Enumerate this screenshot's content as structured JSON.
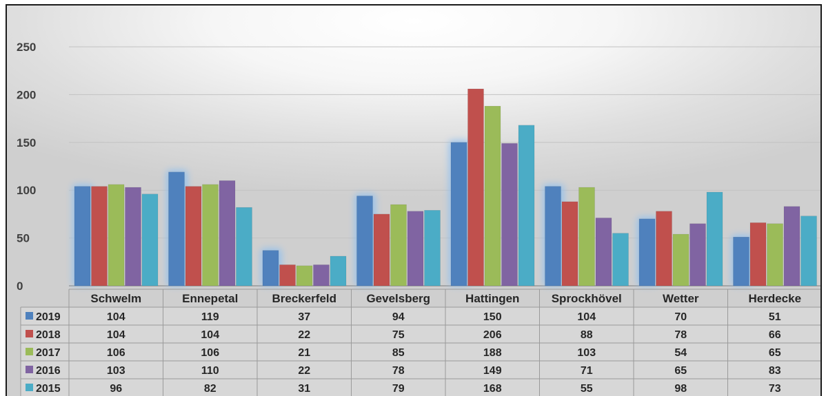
{
  "chart_data": {
    "type": "bar",
    "title": "",
    "xlabel": "",
    "ylabel": "",
    "ylim": [
      0,
      250
    ],
    "yticks": [
      0,
      50,
      100,
      150,
      200,
      250
    ],
    "grid": true,
    "legend": "data-table",
    "categories": [
      "Schwelm",
      "Ennepetal",
      "Breckerfeld",
      "Gevelsberg",
      "Hattingen",
      "Sprockhövel",
      "Wetter",
      "Herdecke"
    ],
    "series": [
      {
        "name": "2019",
        "color": "#4f81bd",
        "values": [
          104,
          119,
          37,
          94,
          150,
          104,
          70,
          51
        ]
      },
      {
        "name": "2018",
        "color": "#c0504d",
        "values": [
          104,
          104,
          22,
          75,
          206,
          88,
          78,
          66
        ]
      },
      {
        "name": "2017",
        "color": "#9bbb59",
        "values": [
          106,
          106,
          21,
          85,
          188,
          103,
          54,
          65
        ]
      },
      {
        "name": "2016",
        "color": "#8064a2",
        "values": [
          103,
          110,
          22,
          78,
          149,
          71,
          65,
          83
        ]
      },
      {
        "name": "2015",
        "color": "#4bacc6",
        "values": [
          96,
          82,
          31,
          79,
          168,
          55,
          98,
          73
        ]
      }
    ],
    "highlighted_series": "2019"
  }
}
